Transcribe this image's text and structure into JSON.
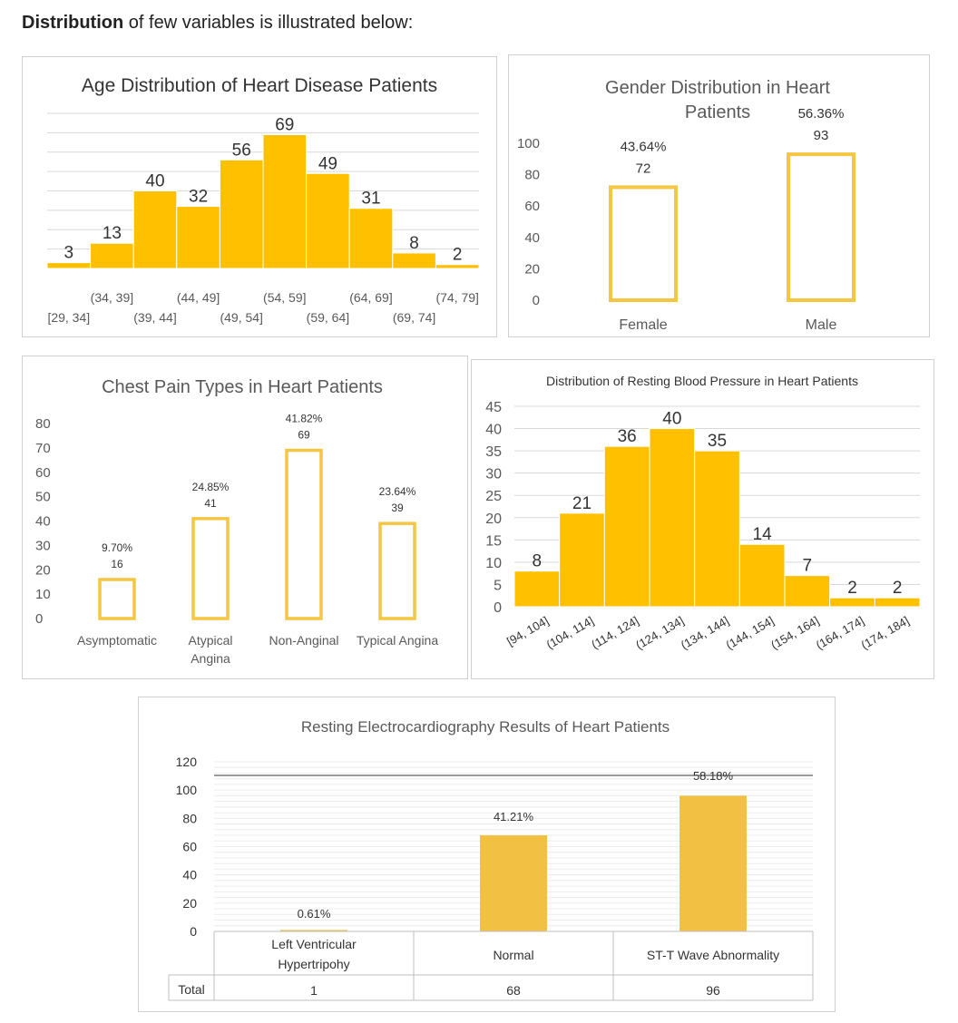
{
  "intro": {
    "bold": "Distribution",
    "rest": " of few variables is illustrated below:"
  },
  "colors": {
    "bar": "#FFC000",
    "outline": "#F4C642",
    "ecg_bar": "#F2C144",
    "grid": "#d9d9d9",
    "text": "#595959"
  },
  "chart_data": [
    {
      "id": "age",
      "type": "bar",
      "title": "Age Distribution of Heart Disease Patients",
      "categories": [
        "[29, 34]",
        "(34, 39]",
        "(39, 44]",
        "(44, 49]",
        "(49, 54]",
        "(54, 59]",
        "(59, 64]",
        "(64, 69]",
        "(69, 74]",
        "(74, 79]"
      ],
      "values": [
        3,
        13,
        40,
        32,
        56,
        69,
        49,
        31,
        8,
        2
      ],
      "data_labels": [
        "3",
        "13",
        "40",
        "32",
        "56",
        "69",
        "49",
        "31",
        "8",
        "2"
      ],
      "ylim": [
        0,
        80
      ],
      "grid": true,
      "style": "histogram-filled"
    },
    {
      "id": "gender",
      "type": "bar",
      "title_lines": [
        "Gender  Distribution  in  Heart",
        "Patients"
      ],
      "categories": [
        "Female",
        "Male"
      ],
      "values": [
        72,
        93
      ],
      "percent_labels": [
        "43.64%",
        "56.36%"
      ],
      "data_labels": [
        "72",
        "93"
      ],
      "yticks": [
        "0",
        "20",
        "40",
        "60",
        "80",
        "100"
      ],
      "ylim": [
        0,
        100
      ],
      "grid": false,
      "style": "outlined"
    },
    {
      "id": "chest",
      "type": "bar",
      "title": "Chest  Pain  Types  in  Heart  Patients",
      "categories": [
        "Asymptomatic",
        "Atypical Angina",
        "Non-Anginal",
        "Typical Angina"
      ],
      "category_lines": [
        [
          "Asymptomatic"
        ],
        [
          "Atypical",
          "Angina"
        ],
        [
          "Non-Anginal"
        ],
        [
          "Typical Angina"
        ]
      ],
      "values": [
        16,
        41,
        69,
        39
      ],
      "percent_labels": [
        "9.70%",
        "24.85%",
        "41.82%",
        "23.64%"
      ],
      "data_labels": [
        "16",
        "41",
        "69",
        "39"
      ],
      "yticks": [
        "0",
        "10",
        "20",
        "30",
        "40",
        "50",
        "60",
        "70",
        "80"
      ],
      "ylim": [
        0,
        80
      ],
      "grid": false,
      "style": "outlined"
    },
    {
      "id": "bp",
      "type": "bar",
      "title": "Distribution of Resting Blood Pressure in Heart Patients",
      "categories": [
        "[94, 104]",
        "(104, 114]",
        "(114, 124]",
        "(124, 134]",
        "(134, 144]",
        "(144, 154]",
        "(154, 164]",
        "(164, 174]",
        "(174, 184]"
      ],
      "values": [
        8,
        21,
        36,
        40,
        35,
        14,
        7,
        2,
        2
      ],
      "data_labels": [
        "8",
        "21",
        "36",
        "40",
        "35",
        "14",
        "7",
        "2",
        "2"
      ],
      "yticks": [
        "0",
        "5",
        "10",
        "15",
        "20",
        "25",
        "30",
        "35",
        "40",
        "45"
      ],
      "ylim": [
        0,
        45
      ],
      "grid": true,
      "style": "histogram-filled"
    },
    {
      "id": "ecg",
      "type": "bar",
      "title": "Resting Electrocardiography Results of Heart Patients",
      "categories": [
        "Left Ventricular Hypertripohy",
        "Normal",
        "ST-T Wave Abnormality"
      ],
      "category_lines": [
        [
          "Left Ventricular",
          "Hypertripohy"
        ],
        [
          "Normal"
        ],
        [
          "ST-T Wave Abnormality"
        ]
      ],
      "values": [
        1,
        68,
        96
      ],
      "percent_labels": [
        "0.61%",
        "41.21%",
        "58.18%"
      ],
      "yticks": [
        "0",
        "20",
        "40",
        "60",
        "80",
        "100",
        "120"
      ],
      "ylim": [
        0,
        120
      ],
      "grid": true,
      "table": {
        "row_label": "Total",
        "values": [
          "1",
          "68",
          "96"
        ]
      },
      "style": "filled"
    }
  ]
}
